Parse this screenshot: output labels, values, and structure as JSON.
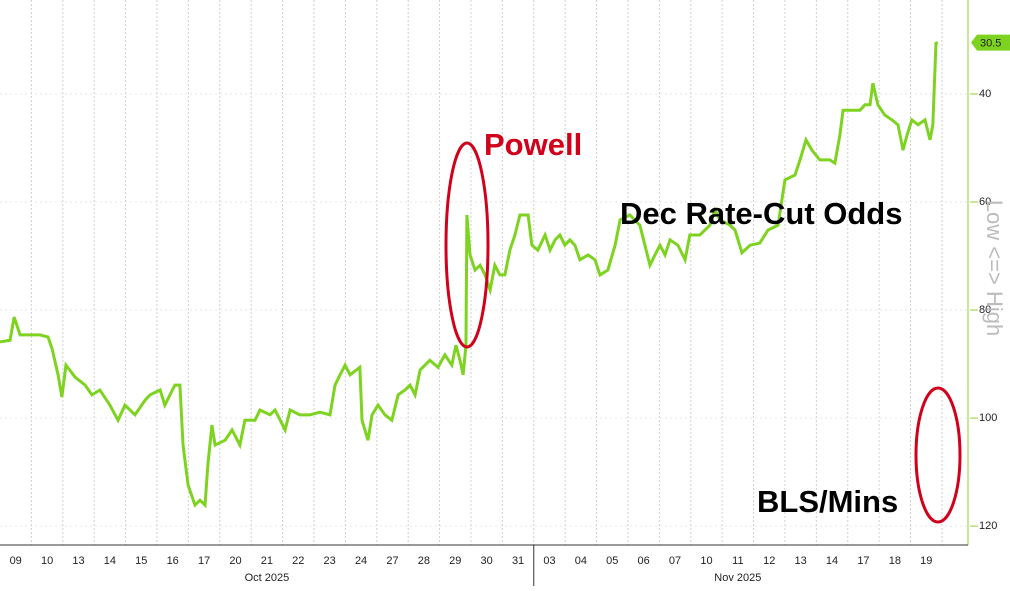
{
  "chart_data": {
    "type": "line",
    "color": "#7ed321",
    "invert_y": true,
    "grid": true,
    "ylim": [
      22.6,
      123.5
    ],
    "yticks": [
      40,
      60,
      80,
      100,
      120
    ],
    "y_label": "Low <=> High",
    "xlim": [
      0,
      30.83
    ],
    "xticks": [
      {
        "value": 0.5,
        "label": "09"
      },
      {
        "value": 1.5,
        "label": "10"
      },
      {
        "value": 2.5,
        "label": "13"
      },
      {
        "value": 3.5,
        "label": "14"
      },
      {
        "value": 4.5,
        "label": "15"
      },
      {
        "value": 5.5,
        "label": "16"
      },
      {
        "value": 6.5,
        "label": "17"
      },
      {
        "value": 7.5,
        "label": "20"
      },
      {
        "value": 8.5,
        "label": "21"
      },
      {
        "value": 9.5,
        "label": "22"
      },
      {
        "value": 10.5,
        "label": "23"
      },
      {
        "value": 11.5,
        "label": "24"
      },
      {
        "value": 12.5,
        "label": "27"
      },
      {
        "value": 13.5,
        "label": "28"
      },
      {
        "value": 14.5,
        "label": "29"
      },
      {
        "value": 15.5,
        "label": "30"
      },
      {
        "value": 16.5,
        "label": "31"
      },
      {
        "value": 17.5,
        "label": "03"
      },
      {
        "value": 18.5,
        "label": "04"
      },
      {
        "value": 19.5,
        "label": "05"
      },
      {
        "value": 20.5,
        "label": "06"
      },
      {
        "value": 21.5,
        "label": "07"
      },
      {
        "value": 22.5,
        "label": "10"
      },
      {
        "value": 23.5,
        "label": "11"
      },
      {
        "value": 24.5,
        "label": "12"
      },
      {
        "value": 25.5,
        "label": "13"
      },
      {
        "value": 26.5,
        "label": "14"
      },
      {
        "value": 27.5,
        "label": "17"
      },
      {
        "value": 28.5,
        "label": "18"
      },
      {
        "value": 29.5,
        "label": "19"
      }
    ],
    "x_gridlines": [
      1,
      2,
      3,
      4,
      5,
      6,
      7,
      8,
      9,
      10,
      11,
      12,
      13,
      14,
      15,
      16,
      17,
      18,
      19,
      20,
      21,
      22,
      23,
      24,
      25,
      26,
      27,
      28,
      29,
      30
    ],
    "x_groups": [
      {
        "label": "Oct 2025",
        "start": 0,
        "end": 17
      },
      {
        "label": "Nov 2025",
        "start": 17,
        "end": 30
      }
    ],
    "x": [
      0,
      0.32,
      0.45,
      0.64,
      1.27,
      1.53,
      1.66,
      1.85,
      1.97,
      2.1,
      2.39,
      2.71,
      2.93,
      3.18,
      3.5,
      3.76,
      3.98,
      4.3,
      4.62,
      4.78,
      5.1,
      5.25,
      5.57,
      5.73,
      5.83,
      5.99,
      6.21,
      6.37,
      6.53,
      6.62,
      6.75,
      6.85,
      7.17,
      7.39,
      7.64,
      7.8,
      8.12,
      8.28,
      8.6,
      8.76,
      9.08,
      9.24,
      9.55,
      9.87,
      10.19,
      10.51,
      10.67,
      10.83,
      10.99,
      11.15,
      11.46,
      11.53,
      11.72,
      11.85,
      12.04,
      12.26,
      12.48,
      12.68,
      12.9,
      13.06,
      13.22,
      13.38,
      13.69,
      13.95,
      14.17,
      14.39,
      14.52,
      14.65,
      14.75,
      14.84,
      14.87,
      14.97,
      15.13,
      15.29,
      15.45,
      15.61,
      15.76,
      15.92,
      16.08,
      16.24,
      16.4,
      16.56,
      16.82,
      16.94,
      17.13,
      17.36,
      17.52,
      17.68,
      17.83,
      17.99,
      18.15,
      18.31,
      18.47,
      18.73,
      18.95,
      19.11,
      19.36,
      19.59,
      19.75,
      20.06,
      20.38,
      20.54,
      20.7,
      20.86,
      21.02,
      21.18,
      21.34,
      21.59,
      21.82,
      21.97,
      22.29,
      22.61,
      22.77,
      22.93,
      23.25,
      23.41,
      23.63,
      23.89,
      24.2,
      24.46,
      24.78,
      25.0,
      25.32,
      25.48,
      25.67,
      25.86,
      26.11,
      26.43,
      26.59,
      26.75,
      26.85,
      27.07,
      27.39,
      27.55,
      27.71,
      27.8,
      27.96,
      28.18,
      28.41,
      28.6,
      28.76,
      28.89,
      29.04,
      29.24,
      29.46,
      29.62,
      29.71,
      29.81,
      29.87
    ],
    "values": [
      85.9,
      85.6,
      81.3,
      84.6,
      84.6,
      85.0,
      87.2,
      92.0,
      96.1,
      90.2,
      92.4,
      93.9,
      95.7,
      94.8,
      97.6,
      100.4,
      97.6,
      99.4,
      96.7,
      95.7,
      94.8,
      97.6,
      93.9,
      93.9,
      105.0,
      112.4,
      116.1,
      115.2,
      116.1,
      108.7,
      101.3,
      105.0,
      104.1,
      102.2,
      105.0,
      100.4,
      100.4,
      98.5,
      99.4,
      98.5,
      102.2,
      98.5,
      99.4,
      99.4,
      98.9,
      99.4,
      93.9,
      92.0,
      90.2,
      92.0,
      90.6,
      100.4,
      104.1,
      99.4,
      97.6,
      99.4,
      100.4,
      95.7,
      94.8,
      93.9,
      95.7,
      91.1,
      89.3,
      90.6,
      88.3,
      90.2,
      86.5,
      89.3,
      92.0,
      86.5,
      62.4,
      69.8,
      72.6,
      71.7,
      73.5,
      76.3,
      71.7,
      73.5,
      73.5,
      68.9,
      66.1,
      62.4,
      62.4,
      68.0,
      68.9,
      66.1,
      68.9,
      67.0,
      66.1,
      68.0,
      67.0,
      68.0,
      70.7,
      69.8,
      70.7,
      73.5,
      72.6,
      68.0,
      63.3,
      62.4,
      64.3,
      68.0,
      71.7,
      69.8,
      68.0,
      69.8,
      67.0,
      68.0,
      70.7,
      66.1,
      66.1,
      64.3,
      61.5,
      63.3,
      64.3,
      65.2,
      69.4,
      68.0,
      67.6,
      65.2,
      64.3,
      55.9,
      55.0,
      52.2,
      48.5,
      50.4,
      52.2,
      52.2,
      52.8,
      47.6,
      43.0,
      43.0,
      43.0,
      42.0,
      42.0,
      38.0,
      42.0,
      43.9,
      44.8,
      45.7,
      50.4,
      47.6,
      44.8,
      45.7,
      44.8,
      48.5,
      45.7,
      30.6,
      30.5
    ],
    "last_value_tag": {
      "value": 30.5,
      "label": "30.5"
    },
    "annotations": [
      {
        "text": "Powell",
        "color": "#d0021b"
      },
      {
        "text": "Dec Rate-Cut Odds",
        "color": "#000000"
      },
      {
        "text": "BLS/Mins",
        "color": "#000000"
      }
    ]
  }
}
